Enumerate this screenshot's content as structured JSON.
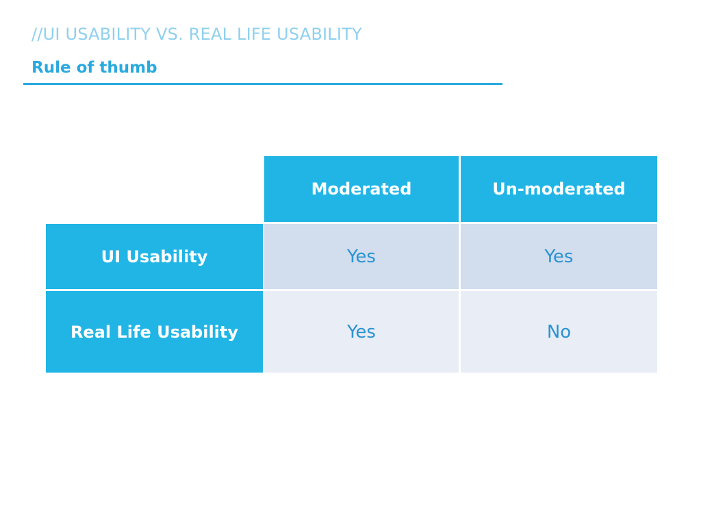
{
  "slide": {
    "heading": "//UI USABILITY VS. REAL LIFE USABILITY",
    "subheading": "Rule of thumb"
  },
  "table": {
    "columns": [
      "Moderated",
      "Un-moderated"
    ],
    "rows": [
      {
        "label": "UI Usability",
        "values": [
          "Yes",
          "Yes"
        ]
      },
      {
        "label": "Real Life Usability",
        "values": [
          "Yes",
          "No"
        ]
      }
    ]
  },
  "colors": {
    "accent": "#21b5e6",
    "heading": "#8fd0ee",
    "subheading": "#29a9df",
    "value_text": "#2a93d2",
    "row_1_bg": "#d2ddee",
    "row_2_bg": "#e9edf6"
  }
}
